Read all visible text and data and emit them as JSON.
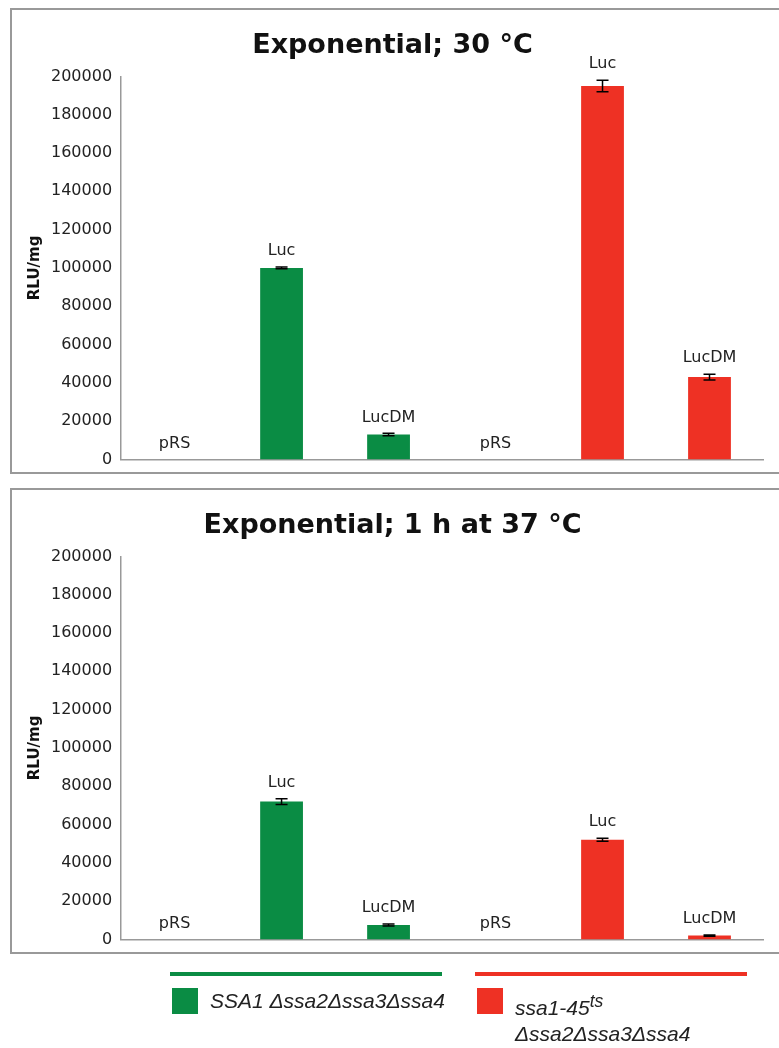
{
  "chart_data": [
    {
      "type": "bar",
      "title": "Exponential; 30 °C",
      "ylabel": "RLU/mg",
      "categories": [
        "pRS",
        "Luc",
        "LucDM",
        "pRS",
        "Luc",
        "LucDM"
      ],
      "series": [
        {
          "color": "#0a8c44",
          "values": [
            null,
            100000,
            13000,
            null,
            null,
            null
          ],
          "errors": [
            null,
            500,
            600,
            null,
            null,
            null
          ]
        },
        {
          "color": "#ee3124",
          "values": [
            null,
            null,
            null,
            null,
            195000,
            43000
          ],
          "errors": [
            null,
            null,
            null,
            null,
            3000,
            1500
          ]
        }
      ],
      "ylim": [
        0,
        200000
      ],
      "yticks": [
        0,
        20000,
        40000,
        60000,
        80000,
        100000,
        120000,
        140000,
        160000,
        180000,
        200000
      ],
      "grid": false,
      "legend": false,
      "tick_labels": "y"
    },
    {
      "type": "bar",
      "title": "Exponential; 1 h at 37 °C",
      "ylabel": "RLU/mg",
      "categories": [
        "pRS",
        "Luc",
        "LucDM",
        "pRS",
        "Luc",
        "LucDM"
      ],
      "series": [
        {
          "name": "SSA1 Δssa2Δssa3Δssa4",
          "color": "#0a8c44",
          "values": [
            null,
            72000,
            7500,
            null,
            null,
            null
          ],
          "errors": [
            null,
            1500,
            500,
            null,
            null,
            null
          ]
        },
        {
          "name": "ssa1-45$^{ts}$ Δssa2Δssa3Δssa4",
          "color": "#ee3124",
          "values": [
            null,
            null,
            null,
            null,
            52000,
            2000
          ],
          "errors": [
            null,
            null,
            null,
            null,
            800,
            300
          ]
        }
      ],
      "ylim": [
        0,
        200000
      ],
      "yticks": [
        0,
        20000,
        40000,
        60000,
        80000,
        100000,
        120000,
        140000,
        160000,
        180000,
        200000
      ],
      "grid": false,
      "legend": "bottom",
      "tick_labels": "y"
    }
  ]
}
